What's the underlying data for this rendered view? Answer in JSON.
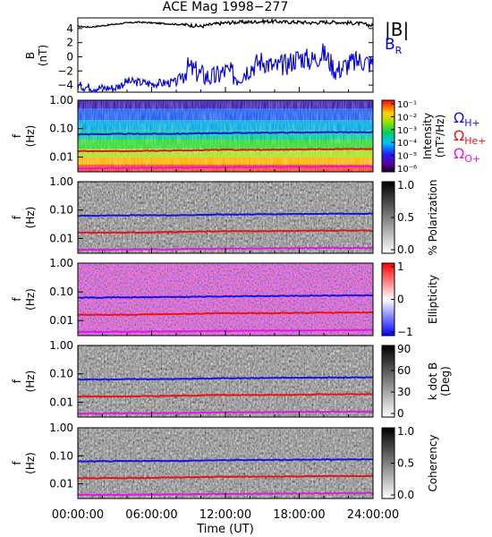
{
  "title": "ACE Mag 1998−277",
  "x_axis": {
    "label": "Time (UT)",
    "ticks": [
      "00:00:00",
      "06:00:00",
      "12:00:00",
      "18:00:00",
      "24:00:00"
    ],
    "range_hours": [
      0,
      24
    ]
  },
  "freq_axis": {
    "label_line1": "f",
    "label_line2": "(Hz)",
    "ticks": [
      "1.00",
      "0.10",
      "0.01"
    ],
    "range_hz": [
      0.003,
      1.0
    ],
    "scale": "log"
  },
  "top_panel": {
    "ylabel_line1": "B",
    "ylabel_line2": "(nT)",
    "yticks": [
      "4",
      "2",
      "0",
      "−2",
      "−4"
    ],
    "legend_total": "|B|",
    "legend_radial": "B",
    "legend_radial_sub": "R",
    "colors": {
      "total": "#000000",
      "radial": "#0000e0"
    }
  },
  "gyro_legend": [
    {
      "symbol": "Ω",
      "sub": "H+",
      "color": "#1414e6"
    },
    {
      "symbol": "Ω",
      "sub": "He+",
      "color": "#e61414"
    },
    {
      "symbol": "Ω",
      "sub": "O+",
      "color": "#e614e6"
    }
  ],
  "panels": [
    {
      "id": "intensity",
      "colorbar_ticks": [
        "10⁻¹",
        "10⁻²",
        "10⁻³",
        "10⁻⁴",
        "10⁻⁵",
        "10⁻⁶"
      ],
      "label_line1": "Intensity",
      "label_line2": "(nT²/Hz)"
    },
    {
      "id": "polarization",
      "colorbar_ticks": [
        "1.0",
        "0.5",
        "0.0"
      ],
      "label_line1": "% Polarization",
      "label_line2": ""
    },
    {
      "id": "ellipticity",
      "colorbar_ticks": [
        "1",
        "0",
        "−1"
      ],
      "label_line1": "Ellipticity",
      "label_line2": ""
    },
    {
      "id": "kdotb",
      "colorbar_ticks": [
        "90",
        "60",
        "30",
        "0"
      ],
      "label_line1": "k dot B",
      "label_line2": "(Deg)"
    },
    {
      "id": "coherence",
      "colorbar_ticks": [
        "1.0",
        "0.5",
        "0.0"
      ],
      "label_line1": "Coherency",
      "label_line2": ""
    }
  ],
  "chart_data": [
    {
      "type": "line",
      "title": "ACE Mag 1998−277",
      "xlabel": "Time (UT)",
      "ylabel": "B (nT)",
      "xlim": [
        0,
        24
      ],
      "ylim": [
        -5,
        5.5
      ],
      "series": [
        {
          "name": "|B|",
          "x": [
            0,
            1,
            2,
            3,
            4,
            5,
            6,
            7,
            8,
            9,
            10,
            11,
            12,
            13,
            14,
            15,
            16,
            17,
            18,
            19,
            20,
            21,
            22,
            23,
            24
          ],
          "values": [
            4.3,
            4.2,
            4.4,
            4.6,
            4.8,
            4.9,
            4.8,
            4.7,
            4.6,
            4.5,
            4.3,
            4.6,
            4.8,
            4.9,
            4.9,
            5.0,
            5.0,
            4.9,
            4.9,
            4.8,
            4.9,
            4.9,
            4.8,
            4.7,
            4.4
          ]
        },
        {
          "name": "B",
          "x": [
            0,
            1,
            2,
            3,
            4,
            5,
            6,
            7,
            8,
            9,
            10,
            11,
            12,
            13,
            14,
            15,
            16,
            17,
            18,
            19,
            20,
            21,
            22,
            23,
            24
          ],
          "values": [
            -4.1,
            -4.3,
            -4.4,
            -4.4,
            -3.5,
            -3.6,
            -3.8,
            -3.7,
            -3.6,
            -1.5,
            -2.5,
            -3.0,
            -2.0,
            -2.8,
            -1.5,
            -0.5,
            -1.5,
            -1.0,
            0.0,
            -0.5,
            0.5,
            -2.0,
            -1.0,
            -0.5,
            -1.0
          ]
        }
      ]
    },
    {
      "type": "line",
      "ylabel": "f (Hz)",
      "yscale": "log",
      "ylim": [
        0.003,
        1.0
      ],
      "xlim": [
        0,
        24
      ],
      "series": [
        {
          "name": "ΩH+",
          "x": [
            0,
            4,
            8,
            12,
            16,
            20,
            24
          ],
          "values": [
            0.063,
            0.065,
            0.066,
            0.07,
            0.072,
            0.074,
            0.075
          ]
        },
        {
          "name": "ΩHe+",
          "x": [
            0,
            4,
            8,
            12,
            16,
            20,
            24
          ],
          "values": [
            0.016,
            0.016,
            0.017,
            0.018,
            0.018,
            0.019,
            0.019
          ]
        },
        {
          "name": "ΩO+",
          "x": [
            0,
            4,
            8,
            12,
            16,
            20,
            24
          ],
          "values": [
            0.004,
            0.0041,
            0.0042,
            0.0044,
            0.0045,
            0.0046,
            0.0047
          ]
        }
      ]
    }
  ]
}
